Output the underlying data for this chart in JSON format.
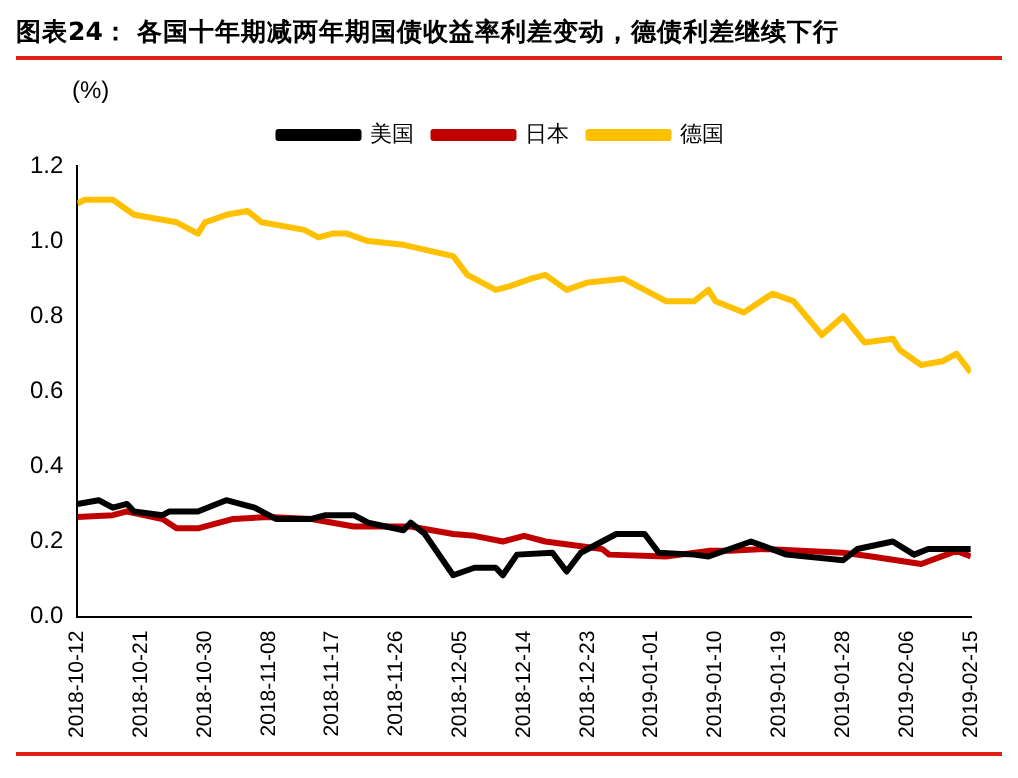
{
  "chart_data": {
    "type": "line",
    "title": "图表24： 各国十年期减两年期国债收益率利差变动，德债利差继续下行",
    "ylabel": "(%)",
    "xlim": [
      "2018-10-12",
      "2019-02-15"
    ],
    "xticks": [
      "2018-10-12",
      "2018-10-21",
      "2018-10-30",
      "2018-11-08",
      "2018-11-17",
      "2018-11-26",
      "2018-12-05",
      "2018-12-14",
      "2018-12-23",
      "2019-01-01",
      "2019-01-10",
      "2019-01-19",
      "2019-01-28",
      "2019-02-06",
      "2019-02-15"
    ],
    "ylim": [
      0,
      1.2
    ],
    "yticks": [
      {
        "value": 0,
        "label": "0.0"
      },
      {
        "value": 0.2,
        "label": "0.2"
      },
      {
        "value": 0.4,
        "label": "0.4"
      },
      {
        "value": 0.6,
        "label": "0.6"
      },
      {
        "value": 0.8,
        "label": "0.8"
      },
      {
        "value": 1,
        "label": "1.0"
      },
      {
        "value": 1.2,
        "label": "1.2"
      }
    ],
    "grid": false,
    "legend": "top",
    "marker": "none",
    "line_style": "solid",
    "series": [
      {
        "name": "美国",
        "color": "#000000",
        "x": [
          "2018-10-12",
          "2018-10-15",
          "2018-10-17",
          "2018-10-19",
          "2018-10-20",
          "2018-10-24",
          "2018-10-25",
          "2018-10-29",
          "2018-11-02",
          "2018-11-06",
          "2018-11-09",
          "2018-11-14",
          "2018-11-16",
          "2018-11-20",
          "2018-11-22",
          "2018-11-27",
          "2018-11-28",
          "2018-11-30",
          "2018-12-04",
          "2018-12-07",
          "2018-12-10",
          "2018-12-11",
          "2018-12-13",
          "2018-12-18",
          "2018-12-20",
          "2018-12-22",
          "2018-12-27",
          "2018-12-31",
          "2019-01-02",
          "2019-01-07",
          "2019-01-09",
          "2019-01-15",
          "2019-01-20",
          "2019-01-28",
          "2019-01-30",
          "2019-02-04",
          "2019-02-07",
          "2019-02-09",
          "2019-02-15"
        ],
        "values": [
          0.3,
          0.31,
          0.29,
          0.3,
          0.28,
          0.27,
          0.28,
          0.28,
          0.31,
          0.29,
          0.26,
          0.26,
          0.27,
          0.27,
          0.25,
          0.23,
          0.25,
          0.22,
          0.11,
          0.13,
          0.13,
          0.11,
          0.165,
          0.17,
          0.12,
          0.17,
          0.22,
          0.22,
          0.17,
          0.165,
          0.16,
          0.2,
          0.165,
          0.15,
          0.18,
          0.2,
          0.165,
          0.18,
          0.18
        ]
      },
      {
        "name": "日本",
        "color": "#c00000",
        "x": [
          "2018-10-12",
          "2018-10-17",
          "2018-10-19",
          "2018-10-24",
          "2018-10-26",
          "2018-10-29",
          "2018-11-03",
          "2018-11-08",
          "2018-11-14",
          "2018-11-20",
          "2018-11-28",
          "2018-12-04",
          "2018-12-07",
          "2018-12-11",
          "2018-12-14",
          "2018-12-17",
          "2018-12-25",
          "2018-12-26",
          "2019-01-03",
          "2019-01-09",
          "2019-01-12",
          "2019-01-17",
          "2019-01-28",
          "2019-02-01",
          "2019-02-08",
          "2019-02-13",
          "2019-02-15"
        ],
        "values": [
          0.265,
          0.27,
          0.28,
          0.26,
          0.235,
          0.235,
          0.26,
          0.265,
          0.26,
          0.24,
          0.24,
          0.22,
          0.215,
          0.2,
          0.215,
          0.2,
          0.18,
          0.165,
          0.16,
          0.175,
          0.175,
          0.18,
          0.17,
          0.16,
          0.14,
          0.175,
          0.16
        ]
      },
      {
        "name": "德国",
        "color": "#ffc000",
        "x": [
          "2018-10-12",
          "2018-10-13",
          "2018-10-17",
          "2018-10-20",
          "2018-10-26",
          "2018-10-29",
          "2018-10-30",
          "2018-11-02",
          "2018-11-05",
          "2018-11-07",
          "2018-11-13",
          "2018-11-15",
          "2018-11-17",
          "2018-11-19",
          "2018-11-22",
          "2018-11-27",
          "2018-12-04",
          "2018-12-06",
          "2018-12-10",
          "2018-12-12",
          "2018-12-15",
          "2018-12-17",
          "2018-12-20",
          "2018-12-23",
          "2018-12-28",
          "2019-01-03",
          "2019-01-07",
          "2019-01-09",
          "2019-01-10",
          "2019-01-14",
          "2019-01-18",
          "2019-01-21",
          "2019-01-25",
          "2019-01-28",
          "2019-01-31",
          "2019-02-04",
          "2019-02-05",
          "2019-02-08",
          "2019-02-11",
          "2019-02-13",
          "2019-02-15"
        ],
        "values": [
          1.1,
          1.11,
          1.11,
          1.07,
          1.05,
          1.02,
          1.05,
          1.07,
          1.08,
          1.05,
          1.03,
          1.01,
          1.02,
          1.02,
          1.0,
          0.99,
          0.96,
          0.91,
          0.87,
          0.88,
          0.9,
          0.91,
          0.87,
          0.89,
          0.9,
          0.84,
          0.84,
          0.87,
          0.84,
          0.81,
          0.86,
          0.84,
          0.75,
          0.8,
          0.73,
          0.74,
          0.71,
          0.67,
          0.68,
          0.7,
          0.65
        ]
      }
    ]
  }
}
